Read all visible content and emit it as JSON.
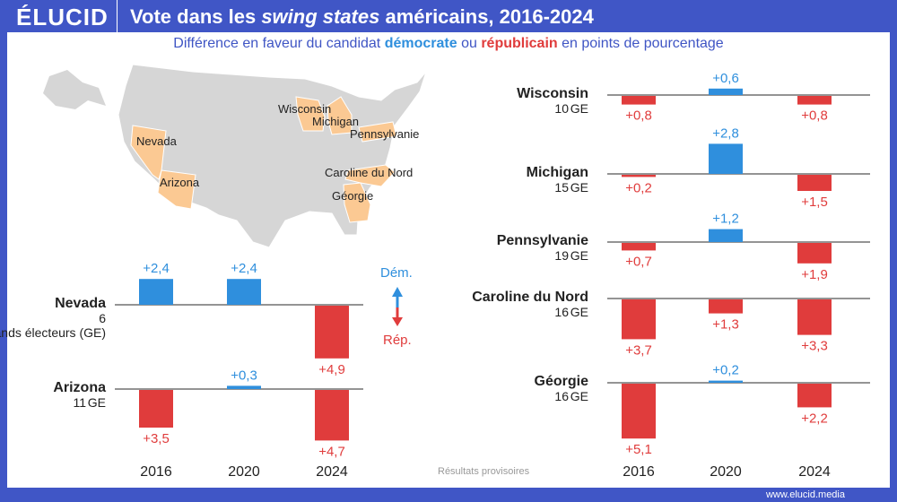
{
  "header": {
    "logo": "ÉLUCID",
    "title_pre": "Vote dans les ",
    "title_italic": "swing states",
    "title_post": " américains, 2016-2024"
  },
  "subtitle": {
    "pre": "Différence en faveur du candidat ",
    "dem": "démocrate",
    "mid": " ou ",
    "rep": "républicain",
    "post": " en points de pourcentage"
  },
  "legend": {
    "dem": "Dém.",
    "rep": "Rép."
  },
  "note": "Résultats provisoires",
  "footer": "www.elucid.media",
  "colors": {
    "dem": "#2f8fdd",
    "rep": "#e03c3c",
    "map_swing": "#fbc993",
    "map_other": "#d6d6d6",
    "brand": "#4056c6"
  },
  "map_labels": [
    "Nevada",
    "Arizona",
    "Wisconsin",
    "Michigan",
    "Pennsylvanie",
    "Caroline du Nord",
    "Géorgie"
  ],
  "chart_data": {
    "type": "bar",
    "categories": [
      "2016",
      "2020",
      "2024"
    ],
    "note": "positive = Démocrate, negative = Républicain",
    "series": [
      {
        "name": "Nevada",
        "ge": "6",
        "ge_label": "grands électeurs (GE)",
        "values": [
          2.4,
          2.4,
          -4.9
        ],
        "labels": [
          "+2,4",
          "+2,4",
          "+4,9"
        ]
      },
      {
        "name": "Arizona",
        "ge": "11",
        "ge_label": "GE",
        "values": [
          -3.5,
          0.3,
          -4.7
        ],
        "labels": [
          "+3,5",
          "+0,3",
          "+4,7"
        ]
      },
      {
        "name": "Wisconsin",
        "ge": "10",
        "ge_label": "GE",
        "values": [
          -0.8,
          0.6,
          -0.8
        ],
        "labels": [
          "+0,8",
          "+0,6",
          "+0,8"
        ]
      },
      {
        "name": "Michigan",
        "ge": "15",
        "ge_label": "GE",
        "values": [
          -0.2,
          2.8,
          -1.5
        ],
        "labels": [
          "+0,2",
          "+2,8",
          "+1,5"
        ]
      },
      {
        "name": "Pennsylvanie",
        "ge": "19",
        "ge_label": "GE",
        "values": [
          -0.7,
          1.2,
          -1.9
        ],
        "labels": [
          "+0,7",
          "+1,2",
          "+1,9"
        ]
      },
      {
        "name": "Caroline du Nord",
        "ge": "16",
        "ge_label": "GE",
        "values": [
          -3.7,
          -1.3,
          -3.3
        ],
        "labels": [
          "+3,7",
          "+1,3",
          "+3,3"
        ]
      },
      {
        "name": "Géorgie",
        "ge": "16",
        "ge_label": "GE",
        "values": [
          -5.1,
          0.2,
          -2.2
        ],
        "labels": [
          "+5,1",
          "+0,2",
          "+2,2"
        ]
      }
    ]
  }
}
